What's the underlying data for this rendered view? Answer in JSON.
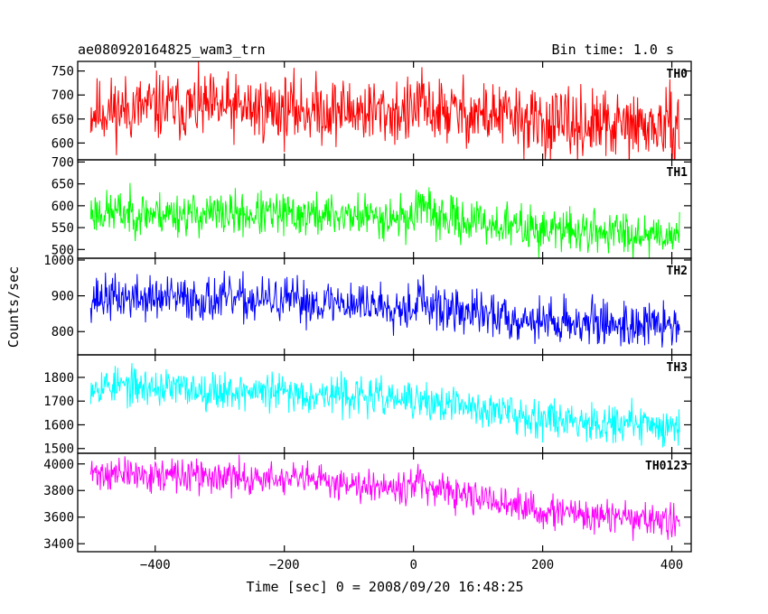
{
  "chart_data": {
    "type": "line",
    "title": "ae080920164825_wam3_trn",
    "subtitle": "Bin time: 1.0 s",
    "xlabel": "Time [sec] 0 = 2008/09/20 16:48:25",
    "ylabel": "Counts/sec",
    "xlim": [
      -520,
      430
    ],
    "x_ticks": [
      -400,
      -200,
      0,
      200,
      400
    ],
    "x_tick_labels": [
      "−400",
      "−200",
      "0",
      "200",
      "400"
    ],
    "x_range_data": [
      -500,
      412
    ],
    "shared_x": true,
    "grid": false,
    "series": [
      {
        "name": "TH0",
        "color": "#ff0000",
        "ylim": [
          565,
          770
        ],
        "y_ticks": [
          600,
          650,
          700,
          750
        ],
        "profile": [
          [
            -500,
            665
          ],
          [
            -400,
            675
          ],
          [
            -200,
            670
          ],
          [
            -100,
            668
          ],
          [
            0,
            662
          ],
          [
            8,
            690
          ],
          [
            20,
            668
          ],
          [
            150,
            655
          ],
          [
            200,
            638
          ],
          [
            412,
            632
          ]
        ],
        "noise": 42,
        "seed": 11
      },
      {
        "name": "TH1",
        "color": "#00ff00",
        "ylim": [
          480,
          705
        ],
        "y_ticks": [
          500,
          550,
          600,
          650,
          700
        ],
        "profile": [
          [
            -500,
            585
          ],
          [
            -300,
            580
          ],
          [
            -100,
            578
          ],
          [
            0,
            572
          ],
          [
            10,
            620
          ],
          [
            25,
            575
          ],
          [
            200,
            545
          ],
          [
            412,
            535
          ]
        ],
        "noise": 30,
        "seed": 23
      },
      {
        "name": "TH2",
        "color": "#0000ff",
        "ylim": [
          735,
          1005
        ],
        "y_ticks": [
          800,
          900,
          1000
        ],
        "profile": [
          [
            -500,
            895
          ],
          [
            -300,
            890
          ],
          [
            -100,
            880
          ],
          [
            0,
            870
          ],
          [
            10,
            900
          ],
          [
            25,
            865
          ],
          [
            200,
            830
          ],
          [
            412,
            815
          ]
        ],
        "noise": 38,
        "seed": 37
      },
      {
        "name": "TH3",
        "color": "#00ffff",
        "ylim": [
          1480,
          1895
        ],
        "y_ticks": [
          1500,
          1600,
          1700,
          1800
        ],
        "profile": [
          [
            -500,
            1770
          ],
          [
            -300,
            1745
          ],
          [
            -100,
            1725
          ],
          [
            0,
            1700
          ],
          [
            100,
            1670
          ],
          [
            200,
            1630
          ],
          [
            412,
            1590
          ]
        ],
        "noise": 48,
        "seed": 53
      },
      {
        "name": "TH0123",
        "color": "#ff00ff",
        "ylim": [
          3340,
          4080
        ],
        "y_ticks": [
          3400,
          3600,
          3800,
          4000
        ],
        "profile": [
          [
            -500,
            3930
          ],
          [
            -300,
            3900
          ],
          [
            -100,
            3860
          ],
          [
            0,
            3830
          ],
          [
            8,
            3920
          ],
          [
            20,
            3800
          ],
          [
            100,
            3740
          ],
          [
            200,
            3640
          ],
          [
            412,
            3560
          ]
        ],
        "noise": 75,
        "seed": 71
      }
    ]
  }
}
